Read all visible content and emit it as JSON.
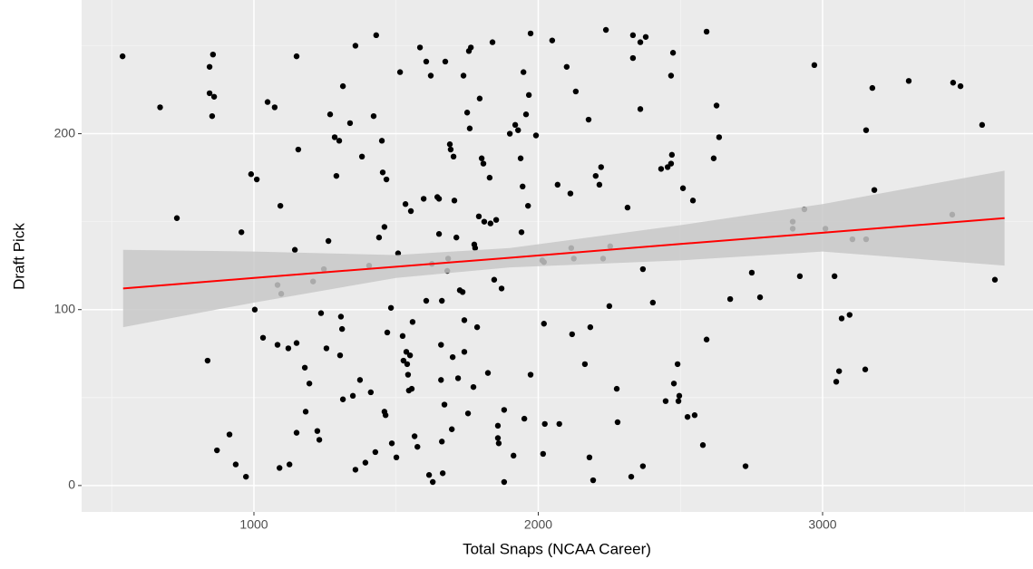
{
  "chart_data": {
    "type": "scatter",
    "x_label": "Total Snaps (NCAA Career)",
    "y_label": "Draft Pick",
    "xlim": [
      394,
      3740
    ],
    "ylim": [
      -15,
      276
    ],
    "xticks": [
      1000,
      2000,
      3000
    ],
    "yticks": [
      0,
      100,
      200
    ],
    "xminor": [
      500,
      1500,
      2500,
      3500
    ],
    "yminor": [
      50,
      150,
      250
    ],
    "grid": true,
    "color": "#000000",
    "x": [
      538,
      670,
      729,
      844,
      844,
      837,
      853,
      856,
      860,
      870,
      914,
      936,
      956,
      972,
      990,
      1010,
      1003,
      1032,
      1048,
      1073,
      1083,
      1083,
      1093,
      1096,
      1090,
      1121,
      1125,
      1144,
      1150,
      1156,
      1150,
      1150,
      1179,
      1182,
      1195,
      1208,
      1223,
      1230,
      1236,
      1246,
      1255,
      1262,
      1268,
      1284,
      1290,
      1300,
      1303,
      1306,
      1310,
      1313,
      1313,
      1338,
      1348,
      1357,
      1357,
      1373,
      1380,
      1392,
      1405,
      1411,
      1421,
      1427,
      1430,
      1440,
      1450,
      1453,
      1459,
      1459,
      1463,
      1466,
      1469,
      1482,
      1485,
      1501,
      1507,
      1514,
      1523,
      1526,
      1533,
      1536,
      1539,
      1542,
      1545,
      1555,
      1549,
      1552,
      1558,
      1565,
      1575,
      1584,
      1597,
      1606,
      1606,
      1622,
      1616,
      1629,
      1626,
      1645,
      1651,
      1651,
      1658,
      1661,
      1658,
      1664,
      1661,
      1670,
      1673,
      1680,
      1683,
      1689,
      1692,
      1702,
      1699,
      1696,
      1705,
      1712,
      1718,
      1724,
      1734,
      1740,
      1737,
      1740,
      1750,
      1756,
      1763,
      1753,
      1759,
      1772,
      1775,
      1778,
      1785,
      1794,
      1791,
      1801,
      1807,
      1810,
      1823,
      1829,
      1832,
      1839,
      1845,
      1852,
      1858,
      1861,
      1858,
      1871,
      1880,
      1880,
      1900,
      1913,
      1919,
      1929,
      1941,
      1938,
      1948,
      1945,
      1951,
      1957,
      1964,
      1967,
      1973,
      1973,
      1992,
      2014,
      2020,
      2020,
      2017,
      2023,
      2049,
      2068,
      2074,
      2100,
      2113,
      2119,
      2116,
      2125,
      2132,
      2164,
      2177,
      2183,
      2180,
      2193,
      2202,
      2215,
      2221,
      2228,
      2238,
      2253,
      2250,
      2276,
      2279,
      2314,
      2327,
      2333,
      2333,
      2359,
      2359,
      2378,
      2368,
      2368,
      2403,
      2432,
      2448,
      2455,
      2467,
      2467,
      2470,
      2474,
      2477,
      2490,
      2493,
      2496,
      2509,
      2525,
      2544,
      2550,
      2579,
      2592,
      2592,
      2617,
      2636,
      2627,
      2675,
      2729,
      2751,
      2780,
      2895,
      2895,
      2920,
      2936,
      2971,
      3010,
      3042,
      3048,
      3058,
      3067,
      3095,
      3105,
      3153,
      3153,
      3150,
      3175,
      3182,
      3303,
      3456,
      3459,
      3485,
      3561,
      3606
    ],
    "y": [
      244,
      215,
      152,
      238,
      223,
      71,
      210,
      245,
      221,
      20,
      29,
      12,
      144,
      5,
      177,
      174,
      100,
      84,
      218,
      215,
      80,
      114,
      159,
      109,
      10,
      78,
      12,
      134,
      244,
      191,
      81,
      30,
      67,
      42,
      58,
      116,
      31,
      26,
      98,
      123,
      78,
      139,
      211,
      198,
      176,
      196,
      74,
      96,
      89,
      227,
      49,
      206,
      51,
      9,
      250,
      60,
      187,
      13,
      125,
      53,
      210,
      19,
      256,
      141,
      196,
      178,
      147,
      42,
      40,
      174,
      87,
      101,
      24,
      16,
      132,
      235,
      85,
      71,
      160,
      76,
      69,
      63,
      54,
      55,
      74,
      156,
      93,
      28,
      22,
      249,
      163,
      105,
      241,
      233,
      6,
      2,
      126,
      164,
      163,
      143,
      80,
      105,
      60,
      7,
      25,
      46,
      241,
      122,
      129,
      194,
      191,
      187,
      73,
      32,
      162,
      141,
      61,
      111,
      110,
      94,
      233,
      76,
      212,
      247,
      249,
      41,
      203,
      56,
      137,
      135,
      90,
      220,
      153,
      186,
      183,
      150,
      64,
      175,
      149,
      252,
      117,
      151,
      34,
      24,
      27,
      112,
      43,
      2,
      200,
      17,
      205,
      202,
      144,
      186,
      235,
      170,
      38,
      211,
      159,
      222,
      257,
      63,
      199,
      128,
      127,
      92,
      18,
      35,
      253,
      171,
      35,
      238,
      166,
      86,
      135,
      129,
      224,
      69,
      208,
      90,
      16,
      3,
      176,
      171,
      181,
      129,
      259,
      136,
      102,
      55,
      36,
      158,
      5,
      243,
      256,
      214,
      252,
      255,
      11,
      123,
      104,
      180,
      48,
      181,
      183,
      233,
      188,
      246,
      58,
      69,
      48,
      51,
      169,
      39,
      162,
      40,
      23,
      258,
      83,
      186,
      198,
      216,
      106,
      11,
      121,
      107,
      150,
      146,
      119,
      157,
      239,
      146,
      119,
      59,
      65,
      95,
      97,
      140,
      140,
      202,
      66,
      226,
      168,
      230,
      154,
      229,
      227,
      205,
      117
    ],
    "fit": {
      "color": "#ff0000",
      "band_color": "#c8c8c8",
      "x": [
        540,
        1000,
        1500,
        1900,
        2500,
        3000,
        3640
      ],
      "y": [
        112,
        118,
        124.4,
        129.5,
        137.3,
        143.7,
        152
      ],
      "lower": [
        90,
        104,
        118,
        124,
        128,
        133,
        125
      ],
      "upper": [
        134,
        133,
        131,
        135,
        148,
        160,
        179
      ]
    }
  }
}
